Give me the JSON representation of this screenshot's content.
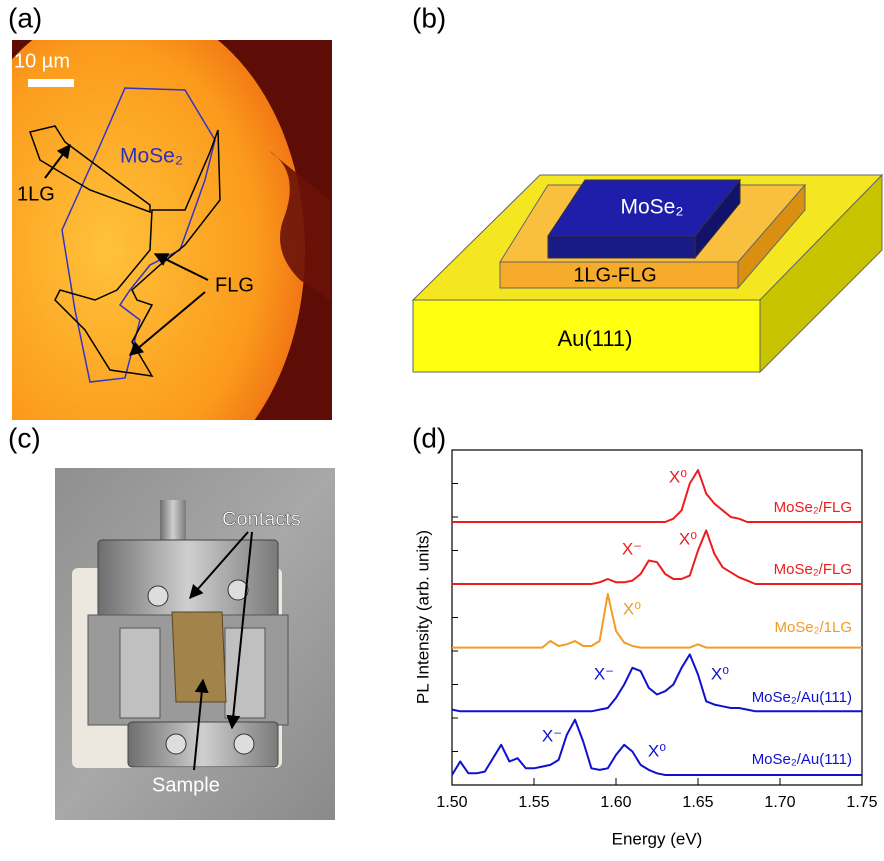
{
  "panels": {
    "a": {
      "label": "(a)",
      "scale_bar": "10 µm",
      "flake": "MoSe₂",
      "monolayer": "1LG",
      "few_layer": "FLG"
    },
    "b": {
      "label": "(b)",
      "top": "MoSe₂",
      "middle": "1LG-FLG",
      "substrate": "Au(111)"
    },
    "c": {
      "label": "(c)",
      "contacts": "Contacts",
      "sample": "Sample"
    },
    "d": {
      "label": "(d)"
    }
  },
  "chart_data": {
    "type": "line",
    "xlabel": "Energy (eV)",
    "ylabel": "PL Intensity (arb. units)",
    "xlim": [
      1.5,
      1.75
    ],
    "xticks": [
      {
        "value": 1.5,
        "label": "1.50"
      },
      1.55,
      {
        "value": 1.6,
        "label": "1.60"
      },
      1.65,
      {
        "value": 1.7,
        "label": "1.70"
      },
      1.75
    ],
    "ylim": [
      0,
      10
    ],
    "yticks": [
      1,
      2,
      3,
      4,
      5,
      6,
      7,
      8,
      9
    ],
    "x": [
      1.5,
      1.505,
      1.51,
      1.515,
      1.52,
      1.525,
      1.53,
      1.535,
      1.54,
      1.545,
      1.55,
      1.555,
      1.56,
      1.565,
      1.57,
      1.575,
      1.58,
      1.585,
      1.59,
      1.595,
      1.6,
      1.605,
      1.61,
      1.615,
      1.62,
      1.625,
      1.63,
      1.635,
      1.64,
      1.645,
      1.65,
      1.655,
      1.66,
      1.665,
      1.67,
      1.675,
      1.68,
      1.685,
      1.69,
      1.695,
      1.7,
      1.705,
      1.71,
      1.715,
      1.72,
      1.725,
      1.73,
      1.735,
      1.74,
      1.745,
      1.75
    ],
    "series": [
      {
        "name": "MoSe₂/FLG",
        "color": "#ee1c1c",
        "values": [
          7.85,
          7.85,
          7.85,
          7.85,
          7.85,
          7.85,
          7.85,
          7.85,
          7.85,
          7.85,
          7.85,
          7.85,
          7.85,
          7.85,
          7.85,
          7.85,
          7.85,
          7.85,
          7.85,
          7.85,
          7.85,
          7.85,
          7.85,
          7.85,
          7.85,
          7.85,
          7.85,
          7.95,
          8.2,
          9.0,
          9.4,
          8.7,
          8.4,
          8.2,
          8.0,
          7.95,
          7.85,
          7.85,
          7.85,
          7.85,
          7.85,
          7.85,
          7.85,
          7.85,
          7.85,
          7.85,
          7.85,
          7.85,
          7.85,
          7.85,
          7.85
        ]
      },
      {
        "name": "MoSe₂/FLG",
        "color": "#ee1c1c",
        "values": [
          6.0,
          6.0,
          6.0,
          6.0,
          6.0,
          6.0,
          6.0,
          6.0,
          6.0,
          6.0,
          6.0,
          6.0,
          6.0,
          6.0,
          6.0,
          6.0,
          6.0,
          6.0,
          6.05,
          6.15,
          6.05,
          6.05,
          6.1,
          6.3,
          6.7,
          6.65,
          6.3,
          6.15,
          6.15,
          6.25,
          7.0,
          7.6,
          6.9,
          6.5,
          6.35,
          6.2,
          6.1,
          6.0,
          6.0,
          6.0,
          6.0,
          6.0,
          6.0,
          6.0,
          6.0,
          6.0,
          6.0,
          6.0,
          6.0,
          6.0,
          6.0
        ]
      },
      {
        "name": "MoSe₂/1LG",
        "color": "#f39a27",
        "values": [
          4.1,
          4.1,
          4.1,
          4.1,
          4.1,
          4.1,
          4.1,
          4.1,
          4.1,
          4.1,
          4.1,
          4.1,
          4.3,
          4.15,
          4.2,
          4.3,
          4.15,
          4.15,
          4.3,
          5.7,
          4.6,
          4.25,
          4.15,
          4.1,
          4.1,
          4.1,
          4.1,
          4.1,
          4.1,
          4.1,
          4.2,
          4.1,
          4.1,
          4.1,
          4.1,
          4.1,
          4.1,
          4.1,
          4.1,
          4.1,
          4.1,
          4.1,
          4.1,
          4.1,
          4.1,
          4.1,
          4.1,
          4.1,
          4.1,
          4.1,
          4.1
        ]
      },
      {
        "name": "MoSe₂/Au(111)",
        "color": "#1010d0",
        "values": [
          2.25,
          2.2,
          2.2,
          2.2,
          2.2,
          2.2,
          2.2,
          2.2,
          2.2,
          2.2,
          2.2,
          2.2,
          2.2,
          2.2,
          2.2,
          2.2,
          2.2,
          2.2,
          2.25,
          2.3,
          2.6,
          3.0,
          3.5,
          3.4,
          2.9,
          2.7,
          2.8,
          3.0,
          3.5,
          3.9,
          3.3,
          2.5,
          2.4,
          2.35,
          2.3,
          2.3,
          2.25,
          2.2,
          2.2,
          2.2,
          2.2,
          2.2,
          2.2,
          2.2,
          2.2,
          2.2,
          2.2,
          2.2,
          2.2,
          2.2,
          2.2
        ]
      },
      {
        "name": "MoSe₂/Au(111)",
        "color": "#1010d0",
        "values": [
          0.3,
          0.7,
          0.35,
          0.35,
          0.4,
          0.8,
          1.2,
          0.7,
          0.8,
          0.5,
          0.5,
          0.55,
          0.6,
          0.75,
          1.5,
          1.95,
          1.3,
          0.5,
          0.45,
          0.5,
          0.9,
          1.2,
          1.0,
          0.6,
          0.45,
          0.35,
          0.3,
          0.3,
          0.3,
          0.3,
          0.3,
          0.3,
          0.3,
          0.3,
          0.3,
          0.3,
          0.3,
          0.3,
          0.3,
          0.3,
          0.3,
          0.3,
          0.3,
          0.3,
          0.3,
          0.3,
          0.3,
          0.3,
          0.3,
          0.3,
          0.3
        ]
      }
    ],
    "annotations": [
      {
        "text": "X⁰",
        "color": "#ee1c1c"
      },
      {
        "text": "X⁻",
        "color": "#ee1c1c"
      },
      {
        "text": "X⁰",
        "color": "#ee1c1c"
      },
      {
        "text": "X⁰",
        "color": "#f39a27"
      },
      {
        "text": "X⁻",
        "color": "#1010d0"
      },
      {
        "text": "X⁰",
        "color": "#1010d0"
      },
      {
        "text": "X⁻",
        "color": "#1010d0"
      },
      {
        "text": "X⁰",
        "color": "#1010d0"
      }
    ]
  }
}
